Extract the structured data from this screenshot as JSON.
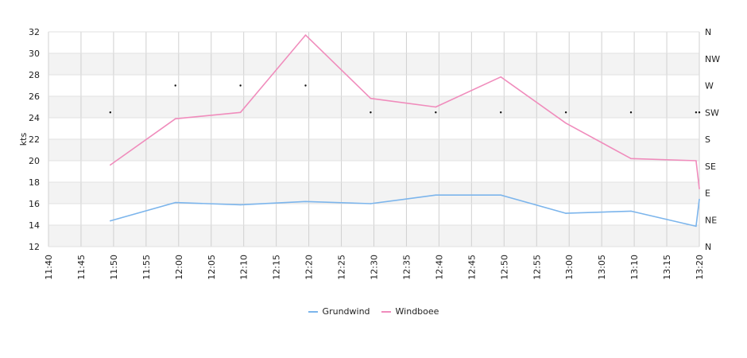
{
  "chart_data": {
    "type": "line",
    "ylabel": "kts",
    "ylim": [
      12,
      32
    ],
    "yticks": [
      12,
      14,
      16,
      18,
      20,
      22,
      24,
      26,
      28,
      30,
      32
    ],
    "x_range": [
      "11:40",
      "13:20"
    ],
    "x_tick_labels": [
      "11:40",
      "11:45",
      "11:50",
      "11:55",
      "12:00",
      "12:05",
      "12:10",
      "12:15",
      "12:20",
      "12:25",
      "12:30",
      "12:35",
      "12:40",
      "12:45",
      "12:50",
      "12:55",
      "13:00",
      "13:05",
      "13:10",
      "13:15",
      "13:20"
    ],
    "right_axis": {
      "labels": [
        "N",
        "NE",
        "E",
        "SE",
        "S",
        "SW",
        "W",
        "NW",
        "N"
      ]
    },
    "grid": true,
    "legend_position": "bottom",
    "series": [
      {
        "name": "Grundwind",
        "color": "#7cb5ec",
        "points": [
          [
            "11:49:30",
            14.4
          ],
          [
            "11:59:30",
            16.1
          ],
          [
            "12:09:30",
            15.9
          ],
          [
            "12:19:30",
            16.2
          ],
          [
            "12:29:30",
            16.0
          ],
          [
            "12:39:30",
            16.8
          ],
          [
            "12:49:30",
            16.8
          ],
          [
            "12:59:30",
            15.1
          ],
          [
            "13:09:30",
            15.3
          ],
          [
            "13:19:30",
            13.9
          ],
          [
            "13:20:00",
            16.4
          ]
        ]
      },
      {
        "name": "Windboee",
        "color": "#f08cbc",
        "points": [
          [
            "11:49:30",
            19.6
          ],
          [
            "11:59:30",
            23.9
          ],
          [
            "12:09:30",
            24.5
          ],
          [
            "12:19:30",
            31.7
          ],
          [
            "12:29:30",
            25.8
          ],
          [
            "12:39:30",
            25.0
          ],
          [
            "12:49:30",
            27.8
          ],
          [
            "12:59:30",
            23.5
          ],
          [
            "13:09:30",
            20.2
          ],
          [
            "13:19:30",
            20.0
          ],
          [
            "13:20:00",
            17.4
          ]
        ]
      }
    ],
    "direction_markers": [
      [
        "11:49:30",
        "SW"
      ],
      [
        "11:59:30",
        "W"
      ],
      [
        "12:09:30",
        "W"
      ],
      [
        "12:19:30",
        "W"
      ],
      [
        "12:29:30",
        "SW"
      ],
      [
        "12:39:30",
        "SW"
      ],
      [
        "12:49:30",
        "SW"
      ],
      [
        "12:59:30",
        "SW"
      ],
      [
        "13:09:30",
        "SW"
      ],
      [
        "13:19:30",
        "SW"
      ],
      [
        "13:20:00",
        "SW"
      ]
    ]
  }
}
